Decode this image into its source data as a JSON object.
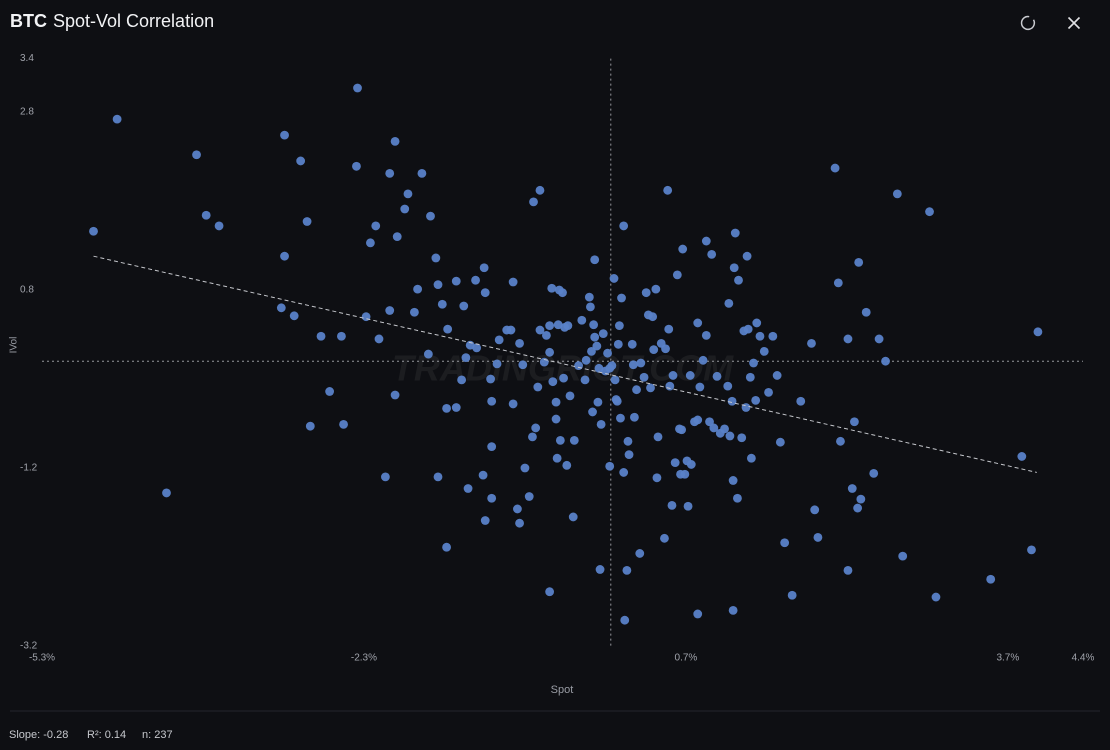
{
  "header": {
    "symbol": "BTC",
    "title": "Spot-Vol Correlation"
  },
  "chart_data": {
    "type": "scatter",
    "xlabel": "Spot",
    "ylabel": "IVol",
    "watermark": "TRADINGRIOT.COM",
    "xlim": [
      -5.3,
      4.4
    ],
    "ylim": [
      -3.2,
      3.4
    ],
    "xticks": [
      {
        "value": -5.3,
        "label": "-5.3%"
      },
      {
        "value": -2.3,
        "label": "-2.3%"
      },
      {
        "value": 0.7,
        "label": "0.7%"
      },
      {
        "value": 3.7,
        "label": "3.7%"
      },
      {
        "value": 4.4,
        "label": "4.4%"
      }
    ],
    "yticks": [
      3.4,
      2.8,
      0.8,
      -1.2,
      -3.2
    ],
    "color": "#5a82c8",
    "x": [
      -4.82,
      -4.6,
      -4.14,
      -3.86,
      -3.77,
      -3.65,
      -3.04,
      -3.04,
      -2.89,
      -2.83,
      -3.07,
      -2.95,
      -2.8,
      -2.7,
      -2.62,
      -2.51,
      -2.49,
      -2.36,
      -2.37,
      -2.28,
      -2.24,
      -2.19,
      -2.16,
      -2.1,
      -2.06,
      -2.06,
      -2.01,
      -1.99,
      -2.01,
      -1.92,
      -1.89,
      -1.83,
      -1.8,
      -1.76,
      -1.7,
      -1.68,
      -1.63,
      -1.61,
      -1.61,
      -1.57,
      -1.53,
      -1.53,
      -1.52,
      -1.44,
      -1.44,
      -1.39,
      -1.37,
      -1.35,
      -1.33,
      -1.31,
      -1.26,
      -1.25,
      -1.19,
      -1.18,
      -1.17,
      -1.17,
      -1.12,
      -1.11,
      -1.11,
      -1.11,
      -1.06,
      -1.04,
      -0.97,
      -0.93,
      -0.91,
      -0.91,
      -0.87,
      -0.85,
      -0.85,
      -0.82,
      -0.8,
      -0.76,
      -0.73,
      -0.72,
      -0.7,
      -0.68,
      -0.66,
      -0.66,
      -0.62,
      -0.6,
      -0.57,
      -0.57,
      -0.57,
      -0.55,
      -0.54,
      -0.51,
      -0.51,
      -0.5,
      -0.48,
      -0.49,
      -0.47,
      -0.45,
      -0.44,
      -0.43,
      -0.41,
      -0.4,
      -0.38,
      -0.35,
      -0.34,
      -0.3,
      -0.27,
      -0.24,
      -0.23,
      -0.2,
      -0.19,
      -0.18,
      -0.17,
      -0.16,
      -0.15,
      -0.15,
      -0.13,
      -0.12,
      -0.11,
      -0.1,
      -0.09,
      -0.07,
      -0.05,
      -0.03,
      -0.01,
      -0.01,
      0.01,
      0.03,
      0.04,
      0.05,
      0.06,
      0.07,
      0.08,
      0.09,
      0.1,
      0.12,
      0.12,
      0.13,
      0.15,
      0.16,
      0.17,
      0.2,
      0.21,
      0.22,
      0.24,
      0.27,
      0.28,
      0.31,
      0.33,
      0.35,
      0.37,
      0.39,
      0.4,
      0.42,
      0.43,
      0.44,
      0.47,
      0.5,
      0.51,
      0.53,
      0.54,
      0.55,
      0.57,
      0.58,
      0.6,
      0.62,
      0.64,
      0.65,
      0.66,
      0.67,
      0.69,
      0.71,
      0.72,
      0.74,
      0.75,
      0.78,
      0.81,
      0.81,
      0.81,
      0.83,
      0.86,
      0.89,
      0.89,
      0.92,
      0.94,
      0.96,
      0.99,
      1.02,
      1.06,
      1.09,
      1.1,
      1.11,
      1.13,
      1.14,
      1.14,
      1.15,
      1.16,
      1.18,
      1.19,
      1.22,
      1.24,
      1.26,
      1.27,
      1.28,
      1.3,
      1.31,
      1.33,
      1.35,
      1.36,
      1.39,
      1.43,
      1.47,
      1.51,
      1.55,
      1.58,
      1.62,
      1.69,
      1.77,
      1.87,
      1.9,
      1.93,
      2.09,
      2.12,
      2.14,
      2.21,
      2.21,
      2.25,
      2.27,
      2.3,
      2.31,
      2.33,
      2.38,
      2.45,
      2.5,
      2.56,
      2.67,
      2.72,
      2.97,
      3.03,
      3.54,
      3.83,
      3.92,
      3.98
    ],
    "y": [
      1.46,
      2.72,
      -1.48,
      2.32,
      1.64,
      1.52,
      2.54,
      1.18,
      2.25,
      1.57,
      0.6,
      0.51,
      -0.73,
      0.28,
      -0.34,
      0.28,
      -0.71,
      3.07,
      2.19,
      0.5,
      1.33,
      1.52,
      0.25,
      -1.3,
      2.11,
      0.57,
      2.47,
      1.4,
      -0.38,
      1.71,
      1.88,
      0.55,
      0.81,
      2.11,
      0.08,
      1.63,
      1.16,
      0.86,
      -1.3,
      0.64,
      -0.53,
      -2.09,
      0.36,
      0.9,
      -0.52,
      -0.21,
      0.62,
      0.04,
      -1.43,
      0.18,
      0.91,
      0.15,
      -1.28,
      1.05,
      0.77,
      -1.79,
      -0.2,
      -0.45,
      -0.96,
      -1.54,
      -0.03,
      0.24,
      0.35,
      0.35,
      -0.48,
      0.89,
      -1.66,
      -1.82,
      0.2,
      -0.04,
      -1.2,
      -1.52,
      -0.85,
      1.79,
      -0.75,
      -0.29,
      1.92,
      0.35,
      -0.01,
      0.29,
      0.4,
      -2.59,
      0.1,
      0.82,
      -0.23,
      -0.46,
      -0.65,
      -1.09,
      0.8,
      0.41,
      -0.89,
      0.77,
      -0.19,
      0.38,
      -1.17,
      0.4,
      -0.39,
      -1.75,
      -0.89,
      -0.05,
      0.46,
      -0.21,
      0.01,
      0.72,
      0.61,
      0.11,
      -0.57,
      0.41,
      1.14,
      0.27,
      0.17,
      -0.46,
      -0.08,
      -2.34,
      -0.71,
      0.31,
      -0.11,
      0.09,
      -0.08,
      -1.18,
      -0.05,
      0.93,
      -0.21,
      -0.43,
      -0.45,
      0.19,
      0.4,
      -0.64,
      0.71,
      -1.25,
      1.52,
      -2.91,
      -2.35,
      -0.9,
      -1.05,
      0.19,
      -0.04,
      -0.63,
      -0.32,
      -2.16,
      -0.02,
      -0.18,
      0.77,
      0.52,
      -0.3,
      0.5,
      0.13,
      0.81,
      -1.31,
      -0.85,
      0.2,
      -1.99,
      0.14,
      1.92,
      0.36,
      -0.28,
      -1.62,
      -0.16,
      -1.14,
      0.97,
      -0.76,
      -1.27,
      -0.77,
      1.26,
      -1.27,
      -1.12,
      -1.63,
      -0.16,
      -1.16,
      -0.68,
      0.43,
      -2.84,
      -0.66,
      -0.29,
      0.01,
      0.29,
      1.35,
      -0.68,
      1.2,
      -0.75,
      -0.17,
      -0.81,
      -0.76,
      -0.28,
      0.65,
      -0.84,
      -0.45,
      -2.8,
      -1.34,
      1.05,
      1.44,
      -1.54,
      0.91,
      -0.86,
      0.34,
      -0.52,
      1.18,
      0.36,
      -0.18,
      -1.09,
      -0.02,
      -0.44,
      0.43,
      0.28,
      0.11,
      -0.35,
      0.28,
      -0.16,
      -0.91,
      -2.04,
      -2.63,
      -0.45,
      0.2,
      -1.67,
      -1.98,
      2.17,
      0.88,
      -0.9,
      -2.35,
      0.25,
      -1.43,
      -0.68,
      -1.65,
      1.11,
      -1.55,
      0.55,
      -1.26,
      0.25,
      0.0,
      1.88,
      -2.19,
      1.68,
      -2.65,
      -2.45,
      -1.07,
      -2.12,
      0.33
    ],
    "trendline": {
      "x": [
        -4.82,
        3.97
      ],
      "y": [
        1.18,
        -1.25
      ]
    }
  },
  "stats": {
    "slope": "Slope: -0.28",
    "r2": "R²: 0.14",
    "n": "n: 237"
  }
}
